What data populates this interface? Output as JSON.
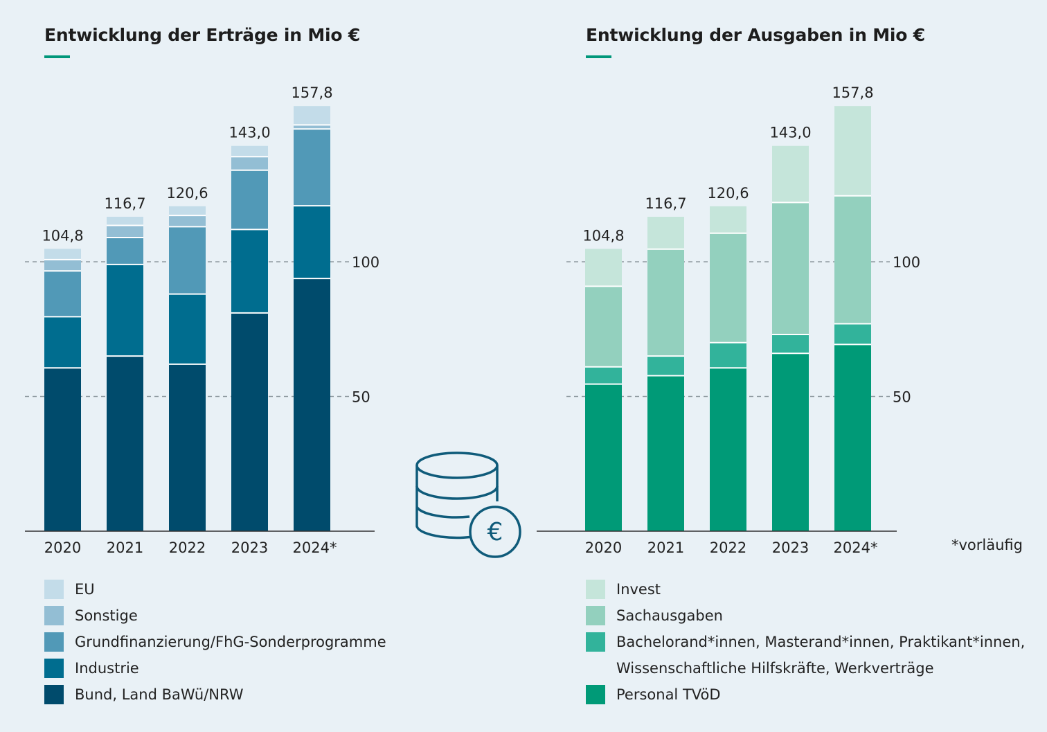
{
  "footnote": "*vorläufig",
  "charts": [
    {
      "id": "ertraege",
      "title": "Entwicklung der Erträge in Mio €",
      "accent_color": "#00977a",
      "legend": [
        {
          "label": "EU",
          "color": "#c3dce9"
        },
        {
          "label": "Sonstige",
          "color": "#93bed4"
        },
        {
          "label": "Grundfinanzierung/FhG-Sonderprogramme",
          "color": "#5199b7"
        },
        {
          "label": "Industrie",
          "color": "#006d8f"
        },
        {
          "label": "Bund, Land BaWü/NRW",
          "color": "#004b6c"
        }
      ]
    },
    {
      "id": "ausgaben",
      "title": "Entwicklung der Ausgaben in Mio €",
      "accent_color": "#00977a",
      "legend": [
        {
          "label": "Invest",
          "color": "#c5e5da"
        },
        {
          "label": "Sachausgaben",
          "color": "#93d0be"
        },
        {
          "label": "Bachelorand*innen, Masterand*innen, Praktikant*innen,\nWissenschaftliche Hilfskräfte, Werkverträge",
          "color": "#32b39b"
        },
        {
          "label": "Personal TVöD",
          "color": "#009a77"
        }
      ]
    }
  ],
  "chart_data": [
    {
      "type": "bar",
      "stacked": true,
      "title": "Entwicklung der Erträge in Mio €",
      "categories": [
        "2020",
        "2021",
        "2022",
        "2023",
        "2024*"
      ],
      "totals": [
        "104,8",
        "116,7",
        "120,6",
        "143,0",
        "157,8"
      ],
      "series": [
        {
          "name": "Bund, Land BaWü/NRW",
          "color": "#004b6c",
          "values": [
            60.6,
            65.0,
            62.0,
            81.0,
            93.8
          ]
        },
        {
          "name": "Industrie",
          "color": "#006d8f",
          "values": [
            19.0,
            34.0,
            26.0,
            31.0,
            27.0
          ]
        },
        {
          "name": "Grundfinanzierung/FhG-Sonderprogramme",
          "color": "#5199b7",
          "values": [
            17.0,
            10.0,
            25.0,
            22.0,
            28.5
          ]
        },
        {
          "name": "Sonstige",
          "color": "#93bed4",
          "values": [
            4.2,
            4.5,
            4.2,
            5.0,
            1.5
          ]
        },
        {
          "name": "EU",
          "color": "#c3dce9",
          "values": [
            4.0,
            3.2,
            3.4,
            4.0,
            7.0
          ]
        }
      ],
      "yticks": [
        50,
        100
      ],
      "ylim": [
        0,
        160
      ]
    },
    {
      "type": "bar",
      "stacked": true,
      "title": "Entwicklung der Ausgaben in Mio €",
      "categories": [
        "2020",
        "2021",
        "2022",
        "2023",
        "2024*"
      ],
      "totals": [
        "104,8",
        "116,7",
        "120,6",
        "143,0",
        "157,8"
      ],
      "series": [
        {
          "name": "Personal TVöD",
          "color": "#009a77",
          "values": [
            54.6,
            57.7,
            60.6,
            66.0,
            69.3
          ]
        },
        {
          "name": "Bachelorand*innen, Masterand*innen, Praktikant*innen, Wissenschaftliche Hilfskräfte, Werkverträge",
          "color": "#32b39b",
          "values": [
            6.4,
            7.3,
            9.4,
            7.0,
            7.7
          ]
        },
        {
          "name": "Sachausgaben",
          "color": "#93d0be",
          "values": [
            29.9,
            39.7,
            40.6,
            49.0,
            47.5
          ]
        },
        {
          "name": "Invest",
          "color": "#c5e5da",
          "values": [
            13.9,
            12.0,
            10.0,
            21.0,
            33.3
          ]
        }
      ],
      "yticks": [
        50,
        100
      ],
      "ylim": [
        0,
        160
      ]
    }
  ]
}
